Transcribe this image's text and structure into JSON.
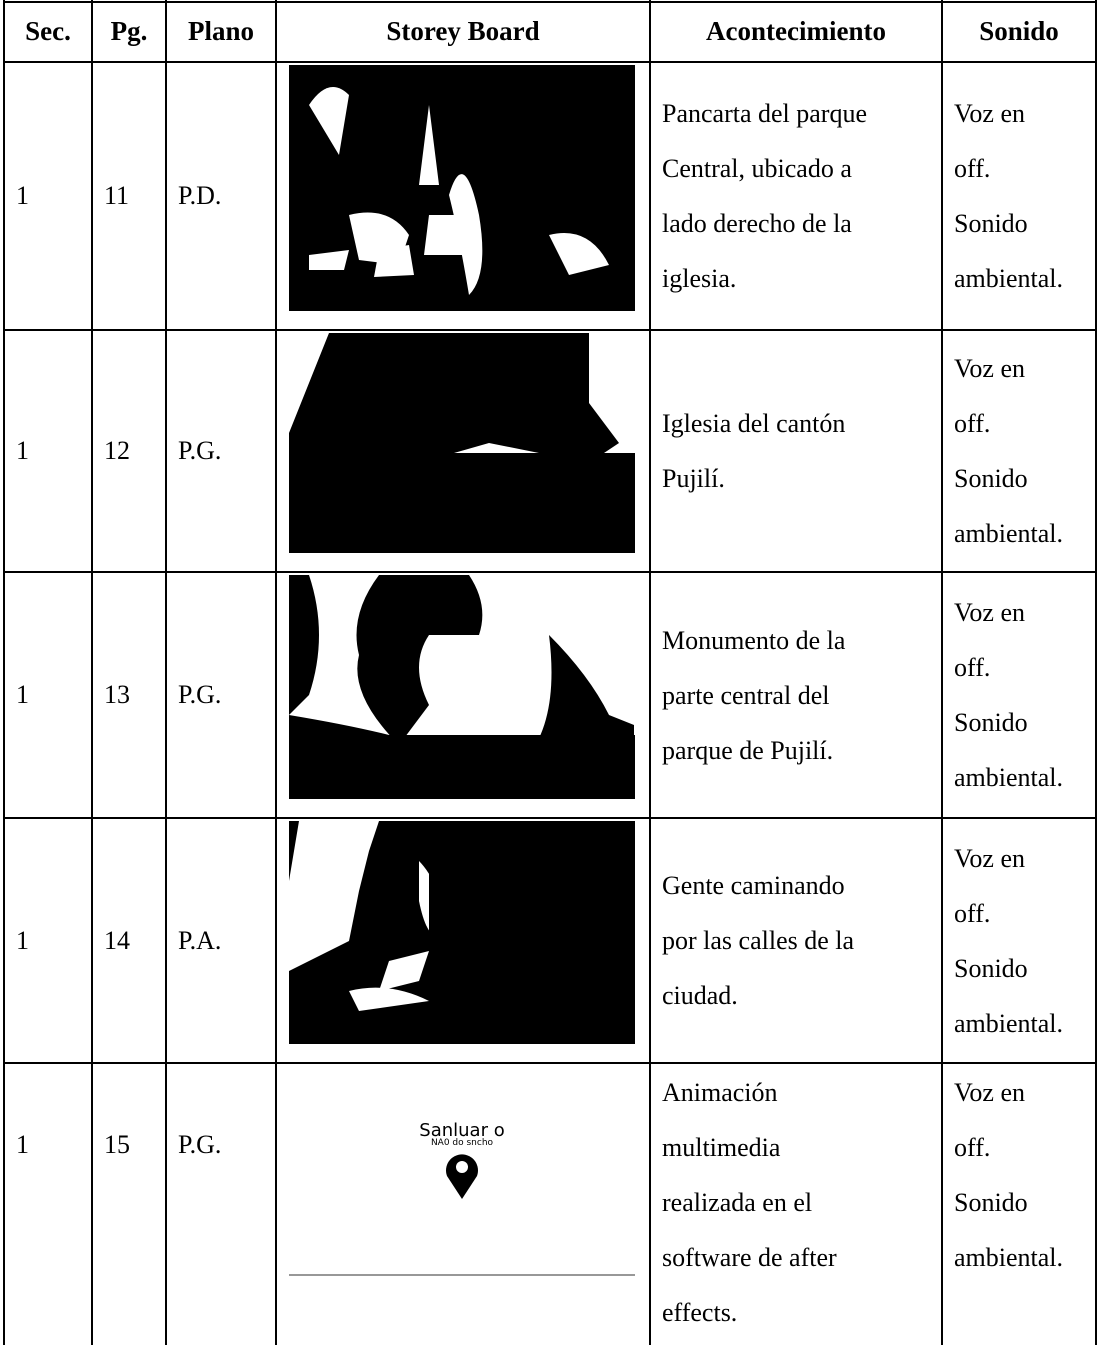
{
  "header": [
    "Sec.",
    "Pg.",
    "Plano",
    "Storey Board",
    "Acontecimiento",
    "Sonido"
  ],
  "rows": [
    {
      "sec": "1",
      "pg": "11",
      "plano": "P.D.",
      "acontecimiento": [
        "Pancarta del parque",
        "Central, ubicado a",
        "lado derecho de la",
        "iglesia."
      ],
      "sonido": [
        "Voz en",
        "off.",
        "Sonido",
        "ambiental."
      ]
    },
    {
      "sec": "1",
      "pg": "12",
      "plano": "P.G.",
      "acontecimiento": [
        "Iglesia del cantón",
        "Pujilí."
      ],
      "sonido": [
        "Voz en",
        "off.",
        "Sonido",
        "ambiental."
      ]
    },
    {
      "sec": "1",
      "pg": "13",
      "plano": "P.G.",
      "acontecimiento": [
        "Monumento de la",
        "parte central del",
        "parque de Pujilí."
      ],
      "sonido": [
        "Voz en",
        "off.",
        "Sonido",
        "ambiental."
      ]
    },
    {
      "sec": "1",
      "pg": "14",
      "plano": "P.A.",
      "acontecimiento": [
        "Gente caminando",
        "por las calles de la",
        "ciudad."
      ],
      "sonido": [
        "Voz en",
        "off.",
        "Sonido",
        "ambiental."
      ]
    },
    {
      "sec": "1",
      "pg": "15",
      "plano": "P.G.",
      "storyboard_text": [
        "Sanluar o",
        "NA0 do sncho"
      ],
      "acontecimiento": [
        "Animación",
        "multimedia",
        "realizada en el",
        "software de after",
        "effects."
      ],
      "sonido": [
        "Voz en",
        "off.",
        "Sonido",
        "ambiental."
      ]
    }
  ]
}
